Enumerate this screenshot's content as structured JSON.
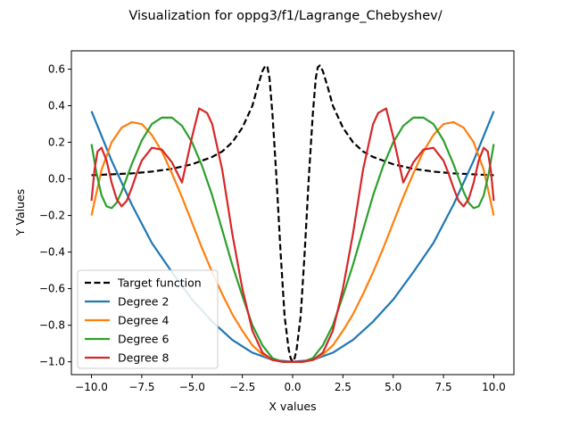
{
  "chart_data": {
    "type": "line",
    "title": "Visualization for oppg3/f1/Lagrange_Chebyshev/",
    "xlabel": "X values",
    "ylabel": "Y Values",
    "xlim": [
      -11.0,
      11.0
    ],
    "ylim": [
      -1.07,
      0.7
    ],
    "xticks": [
      -10,
      -7.5,
      -5,
      -2.5,
      0,
      2.5,
      5,
      7.5,
      10
    ],
    "xtick_labels": [
      "−10.0",
      "−7.5",
      "−5.0",
      "−2.5",
      "0.0",
      "2.5",
      "5.0",
      "7.5",
      "10.0"
    ],
    "yticks": [
      -1.0,
      -0.8,
      -0.6,
      -0.4,
      -0.2,
      0.0,
      0.2,
      0.4,
      0.6
    ],
    "ytick_labels": [
      "−1.0",
      "−0.8",
      "−0.6",
      "−0.4",
      "−0.2",
      "0.0",
      "0.2",
      "0.4",
      "0.6"
    ],
    "grid": false,
    "legend_position": "lower-left",
    "series": [
      {
        "name": "Target function",
        "color": "#000000",
        "dash": true,
        "x": [
          -10,
          -9,
          -8,
          -7,
          -6,
          -5,
          -4,
          -3.5,
          -3,
          -2.5,
          -2,
          -1.75,
          -1.5,
          -1.35,
          -1.25,
          -1.15,
          -1,
          -0.8,
          -0.6,
          -0.4,
          -0.2,
          -0.1,
          0,
          0.1,
          0.2,
          0.4,
          0.6,
          0.8,
          1,
          1.15,
          1.25,
          1.35,
          1.5,
          1.75,
          2,
          2.5,
          3,
          3.5,
          4,
          5,
          6,
          7,
          8,
          9,
          10
        ],
        "y": [
          0.02,
          0.025,
          0.03,
          0.04,
          0.055,
          0.08,
          0.12,
          0.15,
          0.2,
          0.28,
          0.4,
          0.5,
          0.59,
          0.62,
          0.61,
          0.55,
          0.35,
          0.0,
          -0.4,
          -0.75,
          -0.93,
          -0.98,
          -1.0,
          -0.98,
          -0.93,
          -0.75,
          -0.4,
          0.0,
          0.35,
          0.55,
          0.61,
          0.62,
          0.59,
          0.5,
          0.4,
          0.28,
          0.2,
          0.15,
          0.12,
          0.08,
          0.055,
          0.04,
          0.03,
          0.025,
          0.02
        ]
      },
      {
        "name": "Degree 2",
        "color": "#1f77b4",
        "dash": false,
        "x": [
          -10,
          -9,
          -8,
          -7,
          -6,
          -5,
          -4,
          -3,
          -2,
          -1,
          0,
          1,
          2,
          3,
          4,
          5,
          6,
          7,
          8,
          9,
          10
        ],
        "y": [
          0.37,
          0.1,
          -0.14,
          -0.35,
          -0.51,
          -0.66,
          -0.78,
          -0.88,
          -0.95,
          -0.99,
          -1.0,
          -0.99,
          -0.95,
          -0.88,
          -0.78,
          -0.66,
          -0.51,
          -0.35,
          -0.14,
          0.1,
          0.37
        ]
      },
      {
        "name": "Degree 4",
        "color": "#ff7f0e",
        "dash": false,
        "x": [
          -10,
          -9.5,
          -9,
          -8.5,
          -8,
          -7.5,
          -7,
          -6.5,
          -6,
          -5.5,
          -5,
          -4.5,
          -4,
          -3.5,
          -3,
          -2.5,
          -2,
          -1.5,
          -1,
          -0.5,
          0,
          0.5,
          1,
          1.5,
          2,
          2.5,
          3,
          3.5,
          4,
          4.5,
          5,
          5.5,
          6,
          6.5,
          7,
          7.5,
          8,
          8.5,
          9,
          9.5,
          10
        ],
        "y": [
          -0.2,
          0.05,
          0.2,
          0.28,
          0.31,
          0.3,
          0.24,
          0.15,
          0.03,
          -0.1,
          -0.24,
          -0.38,
          -0.51,
          -0.63,
          -0.74,
          -0.83,
          -0.91,
          -0.96,
          -0.99,
          -1.0,
          -1.0,
          -1.0,
          -0.99,
          -0.96,
          -0.91,
          -0.83,
          -0.74,
          -0.63,
          -0.51,
          -0.38,
          -0.24,
          -0.1,
          0.03,
          0.15,
          0.24,
          0.3,
          0.31,
          0.28,
          0.2,
          0.05,
          -0.2
        ]
      },
      {
        "name": "Degree 6",
        "color": "#2ca02c",
        "dash": false,
        "x": [
          -10,
          -9.75,
          -9.5,
          -9.25,
          -9,
          -8.75,
          -8.5,
          -8,
          -7.5,
          -7,
          -6.5,
          -6,
          -5.5,
          -5,
          -4.5,
          -4,
          -3.5,
          -3,
          -2.5,
          -2,
          -1.5,
          -1,
          -0.5,
          0,
          0.5,
          1,
          1.5,
          2,
          2.5,
          3,
          3.5,
          4,
          4.5,
          5,
          5.5,
          6,
          6.5,
          7,
          7.5,
          8,
          8.5,
          8.75,
          9,
          9.25,
          9.5,
          9.75,
          10
        ],
        "y": [
          0.19,
          0.03,
          -0.09,
          -0.15,
          -0.16,
          -0.13,
          -0.07,
          0.08,
          0.21,
          0.3,
          0.335,
          0.335,
          0.29,
          0.2,
          0.07,
          -0.09,
          -0.28,
          -0.47,
          -0.64,
          -0.8,
          -0.91,
          -0.98,
          -1.0,
          -1.0,
          -1.0,
          -0.98,
          -0.91,
          -0.8,
          -0.64,
          -0.47,
          -0.28,
          -0.09,
          0.07,
          0.2,
          0.29,
          0.335,
          0.335,
          0.3,
          0.21,
          0.08,
          -0.07,
          -0.13,
          -0.16,
          -0.15,
          -0.09,
          0.03,
          0.19
        ]
      },
      {
        "name": "Degree 8",
        "color": "#d62728",
        "dash": false,
        "x": [
          -10,
          -9.85,
          -9.7,
          -9.5,
          -9.25,
          -9,
          -8.75,
          -8.5,
          -8.25,
          -8,
          -7.75,
          -7.5,
          -7,
          -6.5,
          -6,
          -5.5,
          -5,
          -4.65,
          -4.25,
          -4,
          -3.5,
          -3,
          -2.5,
          -2,
          -1.5,
          -1,
          -0.5,
          0,
          0.5,
          1,
          1.5,
          2,
          2.5,
          3,
          3.5,
          4,
          4.25,
          4.65,
          5,
          5.5,
          6,
          6.5,
          7,
          7.5,
          7.75,
          8,
          8.25,
          8.5,
          8.75,
          9,
          9.25,
          9.5,
          9.7,
          9.85,
          10
        ],
        "y": [
          -0.12,
          0.05,
          0.15,
          0.17,
          0.1,
          -0.02,
          -0.11,
          -0.15,
          -0.12,
          -0.05,
          0.03,
          0.1,
          0.17,
          0.16,
          0.09,
          -0.02,
          0.23,
          0.385,
          0.36,
          0.3,
          0.05,
          -0.3,
          -0.6,
          -0.83,
          -0.95,
          -0.99,
          -1.0,
          -1.0,
          -1.0,
          -0.99,
          -0.95,
          -0.83,
          -0.6,
          -0.3,
          0.05,
          0.3,
          0.36,
          0.385,
          0.23,
          -0.02,
          0.09,
          0.16,
          0.17,
          0.1,
          0.03,
          -0.05,
          -0.12,
          -0.15,
          -0.11,
          -0.02,
          0.1,
          0.17,
          0.15,
          0.05,
          -0.12
        ]
      }
    ]
  }
}
